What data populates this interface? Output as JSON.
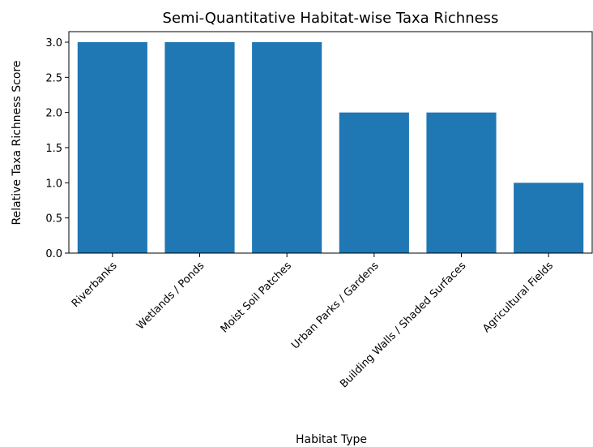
{
  "chart_data": {
    "type": "bar",
    "title": "Semi-Quantitative Habitat-wise Taxa Richness",
    "xlabel": "Habitat Type",
    "ylabel": "Relative Taxa Richness Score",
    "categories": [
      "Riverbanks",
      "Wetlands / Ponds",
      "Moist Soil Patches",
      "Urban Parks / Gardens",
      "Building Walls / Shaded Surfaces",
      "Agricultural Fields"
    ],
    "values": [
      3,
      3,
      3,
      2,
      2,
      1
    ],
    "ylim": [
      0,
      3.15
    ],
    "yticks": [
      0.0,
      0.5,
      1.0,
      1.5,
      2.0,
      2.5,
      3.0
    ],
    "grid": false,
    "bar_color": "#1f77b4"
  }
}
